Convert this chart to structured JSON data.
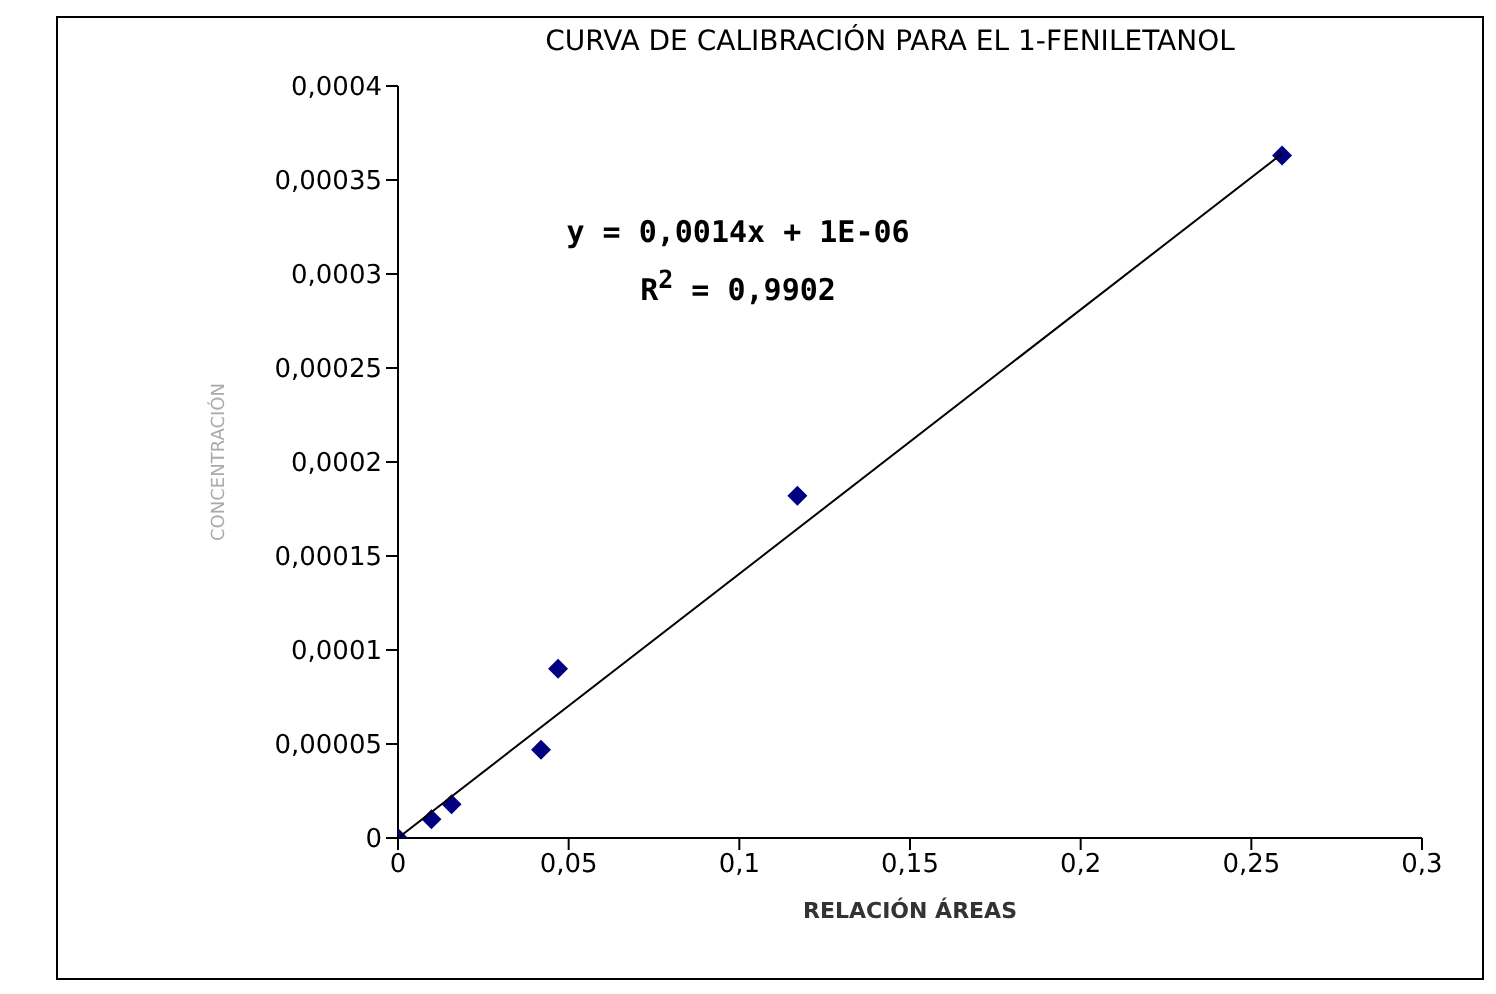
{
  "chart_data": {
    "type": "scatter",
    "title": "CURVA DE CALIBRACIÓN PARA EL 1-FENILETANOL",
    "xlabel": "RELACIÓN ÁREAS",
    "ylabel": "CONCENTRACIÓN",
    "annotations": [
      "y = 0,0014x + 1E-06",
      "R$^{2}$ = 0,9902"
    ],
    "series": [
      {
        "type": "scatter",
        "marker": "diamond",
        "color": "#000080",
        "x": [
          0,
          0.0098,
          0.0157,
          0.0419,
          0.0469,
          0.117,
          0.259
        ],
        "values": [
          0,
          1e-05,
          1.8e-05,
          4.7e-05,
          9e-05,
          0.000182,
          0.000363
        ]
      },
      {
        "type": "line",
        "marker": "none",
        "color": "#000000",
        "x": [
          0,
          0.259
        ],
        "values": [
          0,
          0.000364
        ]
      }
    ],
    "xlim": [
      0,
      0.3
    ],
    "xticks": [
      0,
      {
        "value": 0.05,
        "label": "0,05"
      },
      {
        "value": 0.1,
        "label": "0,1"
      },
      {
        "value": 0.15,
        "label": "0,15"
      },
      {
        "value": 0.2,
        "label": "0,2"
      },
      {
        "value": 0.25,
        "label": "0,25"
      },
      {
        "value": 0.3,
        "label": "0,3"
      }
    ],
    "ylim": [
      0,
      0.0004
    ],
    "yticks": [
      0,
      {
        "value": 5e-05,
        "label": "0,00005"
      },
      {
        "value": 0.0001,
        "label": "0,0001"
      },
      {
        "value": 0.00015,
        "label": "0,00015"
      },
      {
        "value": 0.0002,
        "label": "0,0002"
      },
      {
        "value": 0.00025,
        "label": "0,00025"
      },
      {
        "value": 0.0003,
        "label": "0,0003"
      },
      {
        "value": 0.00035,
        "label": "0,00035"
      },
      {
        "value": 0.0004,
        "label": "0,0004"
      }
    ]
  }
}
